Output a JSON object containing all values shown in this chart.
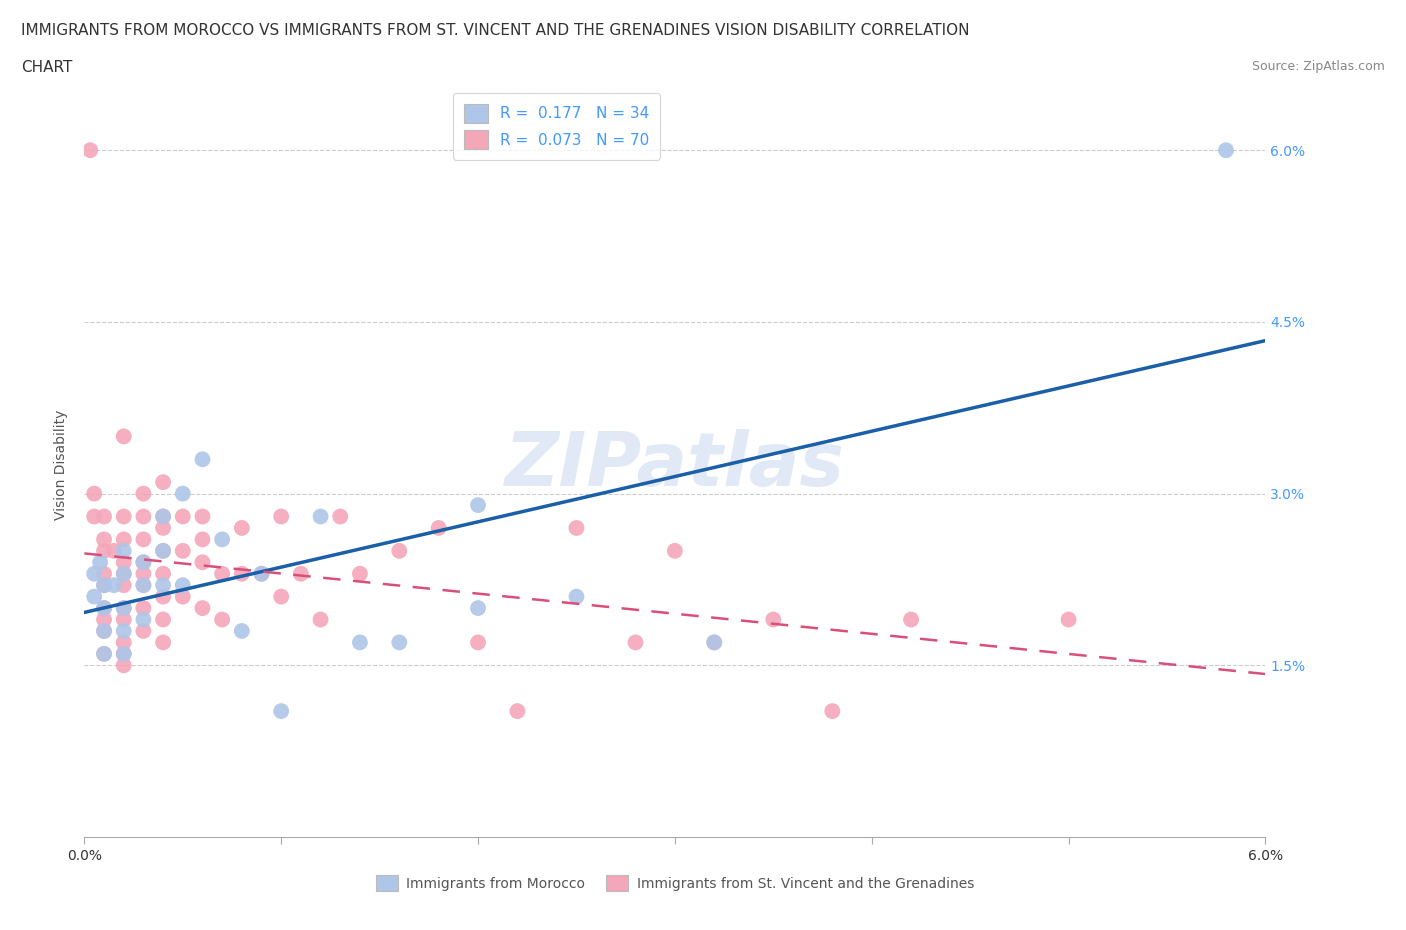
{
  "title_line1": "IMMIGRANTS FROM MOROCCO VS IMMIGRANTS FROM ST. VINCENT AND THE GRENADINES VISION DISABILITY CORRELATION",
  "title_line2": "CHART",
  "source_text": "Source: ZipAtlas.com",
  "ylabel": "Vision Disability",
  "xlim": [
    0.0,
    0.06
  ],
  "ylim": [
    0.0,
    0.065
  ],
  "xticks": [
    0.0,
    0.01,
    0.02,
    0.03,
    0.04,
    0.05,
    0.06
  ],
  "xticklabels": [
    "0.0%",
    "",
    "",
    "",
    "",
    "",
    "6.0%"
  ],
  "yticks": [
    0.0,
    0.015,
    0.03,
    0.045,
    0.06
  ],
  "yticklabels": [
    "",
    "1.5%",
    "3.0%",
    "4.5%",
    "6.0%"
  ],
  "morocco_R": 0.177,
  "morocco_N": 34,
  "svg_R": 0.073,
  "svg_N": 70,
  "morocco_color": "#aec6e8",
  "svg_color": "#f4a7b9",
  "morocco_line_color": "#1a5fa8",
  "svg_line_color": "#d94f7a",
  "tick_color": "#4499ff",
  "background_color": "#ffffff",
  "legend_label_morocco": "Immigrants from Morocco",
  "legend_label_svg": "Immigrants from St. Vincent and the Grenadines",
  "morocco_x": [
    0.0005,
    0.0005,
    0.0008,
    0.001,
    0.001,
    0.001,
    0.001,
    0.0015,
    0.002,
    0.002,
    0.002,
    0.002,
    0.002,
    0.003,
    0.003,
    0.003,
    0.004,
    0.004,
    0.004,
    0.005,
    0.005,
    0.006,
    0.007,
    0.008,
    0.009,
    0.01,
    0.012,
    0.014,
    0.016,
    0.02,
    0.02,
    0.025,
    0.032,
    0.058
  ],
  "morocco_y": [
    0.023,
    0.021,
    0.024,
    0.022,
    0.02,
    0.018,
    0.016,
    0.022,
    0.025,
    0.023,
    0.02,
    0.018,
    0.016,
    0.024,
    0.022,
    0.019,
    0.028,
    0.025,
    0.022,
    0.03,
    0.022,
    0.033,
    0.026,
    0.018,
    0.023,
    0.011,
    0.028,
    0.017,
    0.017,
    0.029,
    0.02,
    0.021,
    0.017,
    0.06
  ],
  "svg_x": [
    0.0003,
    0.0005,
    0.0005,
    0.001,
    0.001,
    0.001,
    0.001,
    0.001,
    0.001,
    0.001,
    0.001,
    0.001,
    0.0015,
    0.002,
    0.002,
    0.002,
    0.002,
    0.002,
    0.002,
    0.002,
    0.002,
    0.002,
    0.002,
    0.002,
    0.003,
    0.003,
    0.003,
    0.003,
    0.003,
    0.003,
    0.003,
    0.003,
    0.004,
    0.004,
    0.004,
    0.004,
    0.004,
    0.004,
    0.004,
    0.004,
    0.005,
    0.005,
    0.005,
    0.006,
    0.006,
    0.006,
    0.006,
    0.007,
    0.007,
    0.008,
    0.008,
    0.009,
    0.01,
    0.01,
    0.011,
    0.012,
    0.013,
    0.014,
    0.016,
    0.018,
    0.02,
    0.022,
    0.025,
    0.028,
    0.03,
    0.032,
    0.035,
    0.038,
    0.042,
    0.05
  ],
  "svg_y": [
    0.06,
    0.03,
    0.028,
    0.028,
    0.026,
    0.025,
    0.023,
    0.022,
    0.02,
    0.019,
    0.018,
    0.016,
    0.025,
    0.035,
    0.028,
    0.026,
    0.024,
    0.023,
    0.022,
    0.02,
    0.019,
    0.017,
    0.016,
    0.015,
    0.03,
    0.028,
    0.026,
    0.024,
    0.023,
    0.022,
    0.02,
    0.018,
    0.031,
    0.028,
    0.027,
    0.025,
    0.023,
    0.021,
    0.019,
    0.017,
    0.028,
    0.025,
    0.021,
    0.028,
    0.026,
    0.024,
    0.02,
    0.023,
    0.019,
    0.027,
    0.023,
    0.023,
    0.028,
    0.021,
    0.023,
    0.019,
    0.028,
    0.023,
    0.025,
    0.027,
    0.017,
    0.011,
    0.027,
    0.017,
    0.025,
    0.017,
    0.019,
    0.011,
    0.019,
    0.019
  ],
  "title_fontsize": 11,
  "axis_label_fontsize": 10,
  "tick_fontsize": 10,
  "legend_fontsize": 11
}
